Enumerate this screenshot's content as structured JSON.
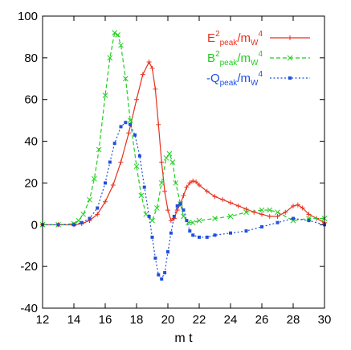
{
  "chart_data": {
    "type": "line",
    "xlabel": "m t",
    "ylabel": "",
    "xlim": [
      12,
      30
    ],
    "ylim": [
      -40,
      100
    ],
    "xticks": [
      "12",
      "14",
      "16",
      "18",
      "20",
      "22",
      "24",
      "26",
      "28",
      "30"
    ],
    "yticks": [
      "-40",
      "-20",
      "0",
      "20",
      "40",
      "60",
      "80",
      "100"
    ],
    "grid": false,
    "legend_position": "top-right",
    "series": [
      {
        "name": "E²peak/mW⁴",
        "legend": {
          "pre": "E",
          "sup1": "2",
          "sub1": "peak",
          "mid": "/m",
          "sub2": "W",
          "sup2": "4"
        },
        "color": "#e8301e",
        "marker": "plus",
        "dash": "solid",
        "x": [
          12,
          13,
          14,
          14.5,
          15,
          15.5,
          16,
          16.5,
          17,
          17.5,
          18,
          18.4,
          18.8,
          19,
          19.2,
          19.4,
          19.6,
          19.8,
          20,
          20.2,
          20.4,
          20.6,
          20.8,
          21,
          21.2,
          21.4,
          21.6,
          21.8,
          22,
          22.5,
          23,
          23.5,
          24,
          24.5,
          25,
          25.5,
          26,
          26.5,
          27,
          27.5,
          28,
          28.3,
          28.6,
          29,
          29.5,
          30
        ],
        "y": [
          0,
          0,
          0,
          0.5,
          2,
          5,
          11,
          19,
          30,
          44,
          60,
          72,
          78,
          75,
          65,
          48,
          30,
          16,
          7,
          2,
          3,
          7,
          10,
          14,
          18,
          20,
          21,
          20.5,
          19,
          16,
          13.5,
          12,
          10.5,
          9,
          7.5,
          6,
          5,
          4,
          4,
          6,
          9,
          9.5,
          8,
          5,
          3,
          1
        ]
      },
      {
        "name": "B²peak/mW⁴",
        "legend": {
          "pre": "B",
          "sup1": "2",
          "sub1": "peak",
          "mid": "/m",
          "sub2": "W",
          "sup2": "4"
        },
        "color": "#22cc22",
        "marker": "x",
        "dash": "dashed",
        "x": [
          12,
          13,
          14,
          14.3,
          14.6,
          15,
          15.3,
          15.6,
          16,
          16.3,
          16.6,
          16.8,
          17,
          17.3,
          17.6,
          18,
          18.3,
          18.6,
          19,
          19.3,
          19.6,
          19.9,
          20.1,
          20.3,
          20.5,
          20.8,
          21,
          21.3,
          21.6,
          22,
          23,
          24,
          25,
          26,
          26.5,
          27,
          28,
          29,
          30
        ],
        "y": [
          0,
          0,
          0.5,
          2,
          5,
          12,
          22,
          36,
          62,
          80,
          92,
          91,
          86,
          70,
          50,
          28,
          14,
          5,
          2,
          8,
          20,
          32,
          34,
          30,
          20,
          10,
          4,
          1,
          1,
          2,
          3,
          4,
          6,
          7,
          7,
          6,
          2,
          3,
          3
        ]
      },
      {
        "name": "-Qpeak/mW⁴",
        "legend": {
          "pre": "-Q",
          "sup1": "",
          "sub1": "peak",
          "mid": "/m",
          "sub2": "W",
          "sup2": "4"
        },
        "color": "#1f4fe0",
        "marker": "square",
        "dash": "dotted",
        "x": [
          12,
          13,
          14,
          14.5,
          15,
          15.5,
          16,
          16.3,
          16.6,
          17,
          17.3,
          17.6,
          17.9,
          18.2,
          18.5,
          18.8,
          19,
          19.2,
          19.4,
          19.6,
          19.8,
          20,
          20.2,
          20.4,
          20.6,
          20.8,
          21,
          21.2,
          21.4,
          21.6,
          22,
          22.5,
          23,
          24,
          25,
          26,
          27,
          28,
          29,
          30
        ],
        "y": [
          0,
          0,
          0,
          1,
          3,
          8,
          20,
          30,
          39,
          47,
          49,
          48,
          43,
          33,
          18,
          4,
          -6,
          -16,
          -24,
          -26,
          -23,
          -13,
          -4,
          4,
          9,
          10,
          7,
          2,
          -3,
          -5,
          -6,
          -6,
          -5,
          -4,
          -3,
          -1,
          1,
          3,
          2,
          0
        ]
      }
    ]
  }
}
